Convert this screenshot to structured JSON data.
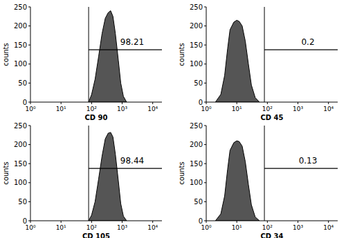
{
  "chart_data": [
    {
      "type": "area",
      "x_label": "CD 90",
      "y_label": "counts",
      "color": "#555555",
      "log": "x",
      "xlim": [
        1,
        20000
      ],
      "ylim": [
        0,
        250
      ],
      "xticks": [
        {
          "value": 1,
          "label": "10⁰"
        },
        {
          "value": 10,
          "label": "10¹"
        },
        {
          "value": 100,
          "label": "10²"
        },
        {
          "value": 1000,
          "label": "10³"
        },
        {
          "value": 10000,
          "label": "10⁴"
        }
      ],
      "yticks": [
        0,
        50,
        100,
        150,
        200,
        250
      ],
      "x": [
        80,
        100,
        130,
        170,
        220,
        280,
        350,
        420,
        500,
        600,
        750,
        900,
        1100,
        1400
      ],
      "values": [
        0,
        20,
        60,
        120,
        180,
        220,
        235,
        240,
        225,
        180,
        110,
        50,
        15,
        0
      ],
      "gate": {
        "x": 80,
        "percent": 98.21
      }
    },
    {
      "type": "area",
      "x_label": "CD 45",
      "y_label": "counts",
      "color": "#555555",
      "log": "x",
      "xlim": [
        1,
        20000
      ],
      "ylim": [
        0,
        250
      ],
      "xticks": [
        {
          "value": 1,
          "label": "10⁰"
        },
        {
          "value": 10,
          "label": "10¹"
        },
        {
          "value": 100,
          "label": "10²"
        },
        {
          "value": 1000,
          "label": "10³"
        },
        {
          "value": 10000,
          "label": "10⁴"
        }
      ],
      "yticks": [
        0,
        50,
        100,
        150,
        200,
        250
      ],
      "x": [
        2,
        3,
        4,
        5,
        6,
        8,
        10,
        12,
        15,
        19,
        24,
        30,
        40,
        55
      ],
      "values": [
        0,
        20,
        70,
        140,
        190,
        210,
        215,
        212,
        200,
        160,
        100,
        45,
        12,
        0
      ],
      "gate": {
        "x": 80,
        "percent": 0.2
      }
    },
    {
      "type": "area",
      "x_label": "CD 105",
      "y_label": "counts",
      "color": "#555555",
      "log": "x",
      "xlim": [
        1,
        20000
      ],
      "ylim": [
        0,
        250
      ],
      "xticks": [
        {
          "value": 1,
          "label": "10⁰"
        },
        {
          "value": 10,
          "label": "10¹"
        },
        {
          "value": 100,
          "label": "10²"
        },
        {
          "value": 1000,
          "label": "10³"
        },
        {
          "value": 10000,
          "label": "10⁴"
        }
      ],
      "yticks": [
        0,
        50,
        100,
        150,
        200,
        250
      ],
      "x": [
        80,
        100,
        130,
        170,
        220,
        280,
        350,
        420,
        500,
        600,
        750,
        900,
        1100,
        1400
      ],
      "values": [
        0,
        15,
        50,
        110,
        170,
        215,
        230,
        232,
        220,
        175,
        105,
        45,
        12,
        0
      ],
      "gate": {
        "x": 80,
        "percent": 98.44
      }
    },
    {
      "type": "area",
      "x_label": "CD 34",
      "y_label": "counts",
      "color": "#555555",
      "log": "x",
      "xlim": [
        1,
        20000
      ],
      "ylim": [
        0,
        250
      ],
      "xticks": [
        {
          "value": 1,
          "label": "10⁰"
        },
        {
          "value": 10,
          "label": "10¹"
        },
        {
          "value": 100,
          "label": "10²"
        },
        {
          "value": 1000,
          "label": "10³"
        },
        {
          "value": 10000,
          "label": "10⁴"
        }
      ],
      "yticks": [
        0,
        50,
        100,
        150,
        200,
        250
      ],
      "x": [
        2,
        3,
        4,
        5,
        6,
        8,
        10,
        12,
        15,
        19,
        24,
        30,
        40,
        55
      ],
      "values": [
        0,
        18,
        65,
        135,
        185,
        205,
        210,
        208,
        196,
        155,
        95,
        42,
        10,
        0
      ],
      "gate": {
        "x": 80,
        "percent": 0.13
      }
    }
  ]
}
